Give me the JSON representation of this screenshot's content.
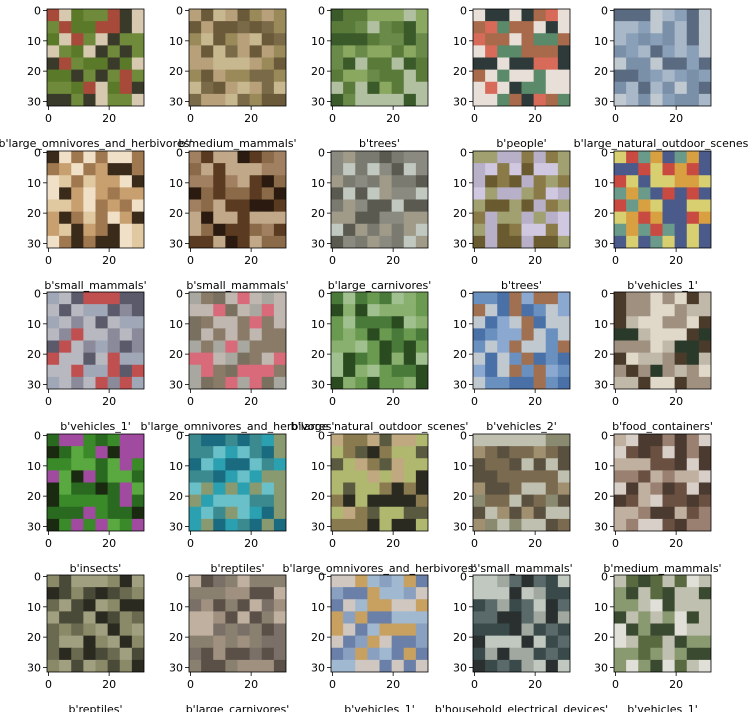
{
  "chart_data": {
    "type": "image-grid",
    "rows": 5,
    "cols": 5,
    "pixel_range": [
      0,
      31
    ],
    "x_ticks": [
      0,
      20
    ],
    "y_ticks": [
      0,
      10,
      20,
      30
    ],
    "panels": [
      {
        "label": "b'large_omnivores_and_herbivores'",
        "palette": [
          "#6e8a3a",
          "#a84a3a",
          "#d7c8b0",
          "#5a7a2a",
          "#3a3a2a"
        ]
      },
      {
        "label": "b'medium_mammals'",
        "palette": [
          "#7a6a48",
          "#b7a07a",
          "#9a8a5a",
          "#6a5a3a",
          "#c8b890"
        ]
      },
      {
        "label": "b'trees'",
        "palette": [
          "#5a7a3a",
          "#3a5a2a",
          "#8aa860",
          "#b0c0a0",
          "#6a8a4a"
        ]
      },
      {
        "label": "b'people'",
        "palette": [
          "#d86a5a",
          "#2e3a3a",
          "#e8e0d8",
          "#a86a4a",
          "#5a8a6a"
        ]
      },
      {
        "label": "b'large_natural_outdoor_scenes'",
        "palette": [
          "#a8b8c8",
          "#7a90a8",
          "#5a6a80",
          "#c0c8d0",
          "#8aa0b8"
        ]
      },
      {
        "label": "b'small_mammals'",
        "palette": [
          "#c8a070",
          "#e0c8a0",
          "#3a2a1a",
          "#a07850",
          "#f0e0c8"
        ]
      },
      {
        "label": "b'small_mammals'",
        "palette": [
          "#5a3a20",
          "#8a6a48",
          "#2a1a10",
          "#a08060",
          "#c0a888"
        ]
      },
      {
        "label": "b'large_carnivores'",
        "palette": [
          "#7a7a70",
          "#5a5a50",
          "#a09a88",
          "#8a8a80",
          "#c0c8c0"
        ]
      },
      {
        "label": "b'trees'",
        "palette": [
          "#8a7a48",
          "#b8b0c8",
          "#6a5a30",
          "#a0a070",
          "#d0c8e0"
        ]
      },
      {
        "label": "b'vehicles_1'",
        "palette": [
          "#c84a40",
          "#d8a040",
          "#6a9a8a",
          "#4a5a8a",
          "#d8d070"
        ]
      },
      {
        "label": "b'vehicles_1'",
        "palette": [
          "#8a8a9a",
          "#b8b8c0",
          "#c05050",
          "#5a5a6a",
          "#a0a8b8"
        ]
      },
      {
        "label": "b'large_omnivores_and_herbivores'",
        "palette": [
          "#a8a8a0",
          "#d86a7a",
          "#8a7a68",
          "#c0b8b0",
          "#7a7060"
        ]
      },
      {
        "label": "b'large_natural_outdoor_scenes'",
        "palette": [
          "#4a7a3a",
          "#2a4a20",
          "#8ab070",
          "#6a9a50",
          "#a0c090"
        ]
      },
      {
        "label": "b'vehicles_2'",
        "palette": [
          "#6a90c0",
          "#4a70a8",
          "#c0c8d0",
          "#8aa8d0",
          "#a07050"
        ]
      },
      {
        "label": "b'food_containers'",
        "palette": [
          "#e0d8c8",
          "#4a3a2a",
          "#a09080",
          "#c0b8a8",
          "#2a3a2a"
        ]
      },
      {
        "label": "b'insects'",
        "palette": [
          "#3a8a2a",
          "#2a6a20",
          "#5aa840",
          "#a04aa0",
          "#1a2a10"
        ]
      },
      {
        "label": "b'reptiles'",
        "palette": [
          "#2aa0b0",
          "#3a8a90",
          "#6ac0c8",
          "#8a9a70",
          "#1a6a80"
        ]
      },
      {
        "label": "b'large_omnivores_and_herbivores'",
        "palette": [
          "#2a2a20",
          "#8a7a50",
          "#c0a880",
          "#5a5a40",
          "#b0b870"
        ]
      },
      {
        "label": "b'small_mammals'",
        "palette": [
          "#7a6a50",
          "#a09070",
          "#c0c0b0",
          "#5a5040",
          "#8a8a70"
        ]
      },
      {
        "label": "b'medium_mammals'",
        "palette": [
          "#6a5040",
          "#9a8070",
          "#c0b0a0",
          "#4a3a30",
          "#d8d0c8"
        ]
      },
      {
        "label": "b'reptiles'",
        "palette": [
          "#4a4a38",
          "#6a6a50",
          "#2a2a20",
          "#8a8a68",
          "#a0a080"
        ]
      },
      {
        "label": "b'large_carnivores'",
        "palette": [
          "#7a7068",
          "#a09080",
          "#5a5048",
          "#c0b0a0",
          "#8a8070"
        ]
      },
      {
        "label": "b'vehicles_1'",
        "palette": [
          "#a0b8d0",
          "#c8a060",
          "#8aa0c0",
          "#d0c8c0",
          "#6a80a8"
        ]
      },
      {
        "label": "b'household_electrical_devices'",
        "palette": [
          "#5a6a6a",
          "#2a3030",
          "#a0a8a0",
          "#3a4a4a",
          "#c0c8c0"
        ]
      },
      {
        "label": "b'vehicles_1'",
        "palette": [
          "#e0e0d8",
          "#5a6a40",
          "#8a9a70",
          "#3a4a30",
          "#c0c0b0"
        ]
      }
    ]
  }
}
